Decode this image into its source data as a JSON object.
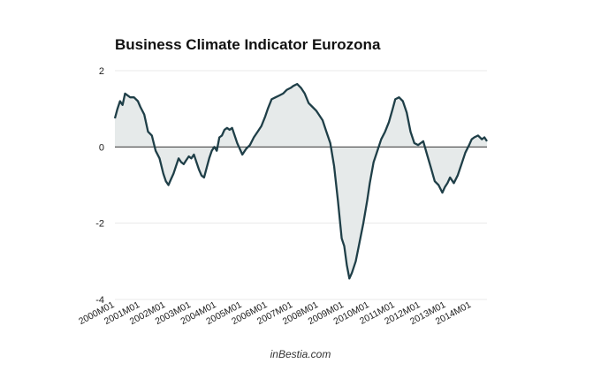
{
  "chart_data": {
    "type": "area",
    "title": "Business Climate Indicator Eurozona",
    "source_credit": "inBestia.com",
    "xlabel": "",
    "ylabel": "",
    "ylim": [
      -4,
      2
    ],
    "y_ticks": [
      2,
      0,
      -2,
      -4
    ],
    "x_tick_labels": [
      "2000M01",
      "2001M01",
      "2002M01",
      "2003M01",
      "2004M01",
      "2005M01",
      "2006M01",
      "2007M01",
      "2008M01",
      "2009M01",
      "2010M01",
      "2011M01",
      "2012M01",
      "2013M01",
      "2014M01"
    ],
    "x_start_year": 2000,
    "grid": true,
    "colors": {
      "line": "#1f3f48",
      "fill": "#e6eaea",
      "zero_line": "#333333",
      "grid": "#e8e8e8"
    },
    "series": [
      {
        "name": "Business Climate Indicator",
        "x": [
          2000.0,
          2000.1,
          2000.2,
          2000.3,
          2000.4,
          2000.5,
          2000.6,
          2000.75,
          2000.9,
          2001.0,
          2001.15,
          2001.3,
          2001.45,
          2001.6,
          2001.75,
          2001.9,
          2002.0,
          2002.1,
          2002.2,
          2002.3,
          2002.4,
          2002.5,
          2002.6,
          2002.7,
          2002.8,
          2002.9,
          2003.0,
          2003.1,
          2003.2,
          2003.3,
          2003.4,
          2003.5,
          2003.6,
          2003.7,
          2003.8,
          2003.9,
          2004.0,
          2004.1,
          2004.2,
          2004.3,
          2004.4,
          2004.5,
          2004.6,
          2004.7,
          2004.8,
          2004.9,
          2005.0,
          2005.15,
          2005.3,
          2005.45,
          2005.6,
          2005.75,
          2005.9,
          2006.0,
          2006.15,
          2006.3,
          2006.45,
          2006.6,
          2006.75,
          2006.9,
          2007.0,
          2007.15,
          2007.3,
          2007.45,
          2007.6,
          2007.75,
          2007.9,
          2008.0,
          2008.15,
          2008.3,
          2008.45,
          2008.6,
          2008.75,
          2008.9,
          2009.0,
          2009.1,
          2009.2,
          2009.3,
          2009.45,
          2009.6,
          2009.75,
          2009.9,
          2010.0,
          2010.15,
          2010.3,
          2010.45,
          2010.6,
          2010.75,
          2010.9,
          2011.0,
          2011.15,
          2011.3,
          2011.45,
          2011.6,
          2011.75,
          2011.9,
          2012.0,
          2012.1,
          2012.25,
          2012.4,
          2012.55,
          2012.7,
          2012.85,
          2012.95,
          2013.05,
          2013.15,
          2013.3,
          2013.45,
          2013.6,
          2013.75,
          2013.9,
          2014.0,
          2014.1,
          2014.25,
          2014.4,
          2014.5,
          2014.6
        ],
        "y": [
          0.75,
          1.0,
          1.2,
          1.1,
          1.4,
          1.35,
          1.3,
          1.3,
          1.2,
          1.05,
          0.85,
          0.4,
          0.3,
          -0.1,
          -0.3,
          -0.7,
          -0.9,
          -1.0,
          -0.85,
          -0.7,
          -0.5,
          -0.3,
          -0.4,
          -0.45,
          -0.35,
          -0.25,
          -0.3,
          -0.2,
          -0.4,
          -0.6,
          -0.75,
          -0.8,
          -0.55,
          -0.3,
          -0.1,
          0.0,
          -0.1,
          0.25,
          0.3,
          0.45,
          0.5,
          0.45,
          0.5,
          0.3,
          0.1,
          -0.05,
          -0.2,
          -0.05,
          0.05,
          0.25,
          0.4,
          0.55,
          0.8,
          1.0,
          1.25,
          1.3,
          1.35,
          1.4,
          1.5,
          1.55,
          1.6,
          1.65,
          1.55,
          1.4,
          1.15,
          1.05,
          0.95,
          0.85,
          0.7,
          0.4,
          0.1,
          -0.5,
          -1.4,
          -2.4,
          -2.6,
          -3.1,
          -3.45,
          -3.3,
          -3.0,
          -2.5,
          -2.0,
          -1.4,
          -0.95,
          -0.4,
          -0.1,
          0.2,
          0.4,
          0.65,
          1.0,
          1.25,
          1.3,
          1.2,
          0.9,
          0.4,
          0.1,
          0.05,
          0.1,
          0.15,
          -0.2,
          -0.55,
          -0.9,
          -1.0,
          -1.2,
          -1.05,
          -0.95,
          -0.8,
          -0.95,
          -0.75,
          -0.45,
          -0.15,
          0.05,
          0.2,
          0.25,
          0.3,
          0.2,
          0.25,
          0.15
        ]
      }
    ]
  }
}
